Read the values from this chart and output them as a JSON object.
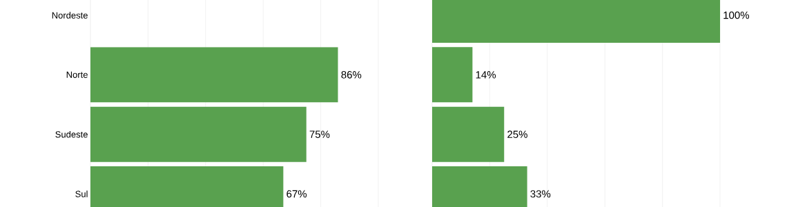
{
  "chart_data": [
    {
      "type": "bar",
      "orientation": "horizontal",
      "categories": [
        "Nordeste",
        "Norte",
        "Sudeste",
        "Sul"
      ],
      "values": [
        null,
        86,
        75,
        67
      ],
      "value_labels": [
        null,
        "86%",
        "75%",
        "67%"
      ],
      "color": "#59a14f",
      "grid": "x",
      "tick_labels": "y"
    },
    {
      "type": "bar",
      "orientation": "horizontal",
      "categories": [
        null,
        null,
        null,
        null
      ],
      "values": [
        100,
        14,
        25,
        33
      ],
      "value_labels": [
        "100%",
        "14%",
        "25%",
        "33%"
      ],
      "color": "#59a14f",
      "grid": "x",
      "tick_labels": false
    }
  ]
}
